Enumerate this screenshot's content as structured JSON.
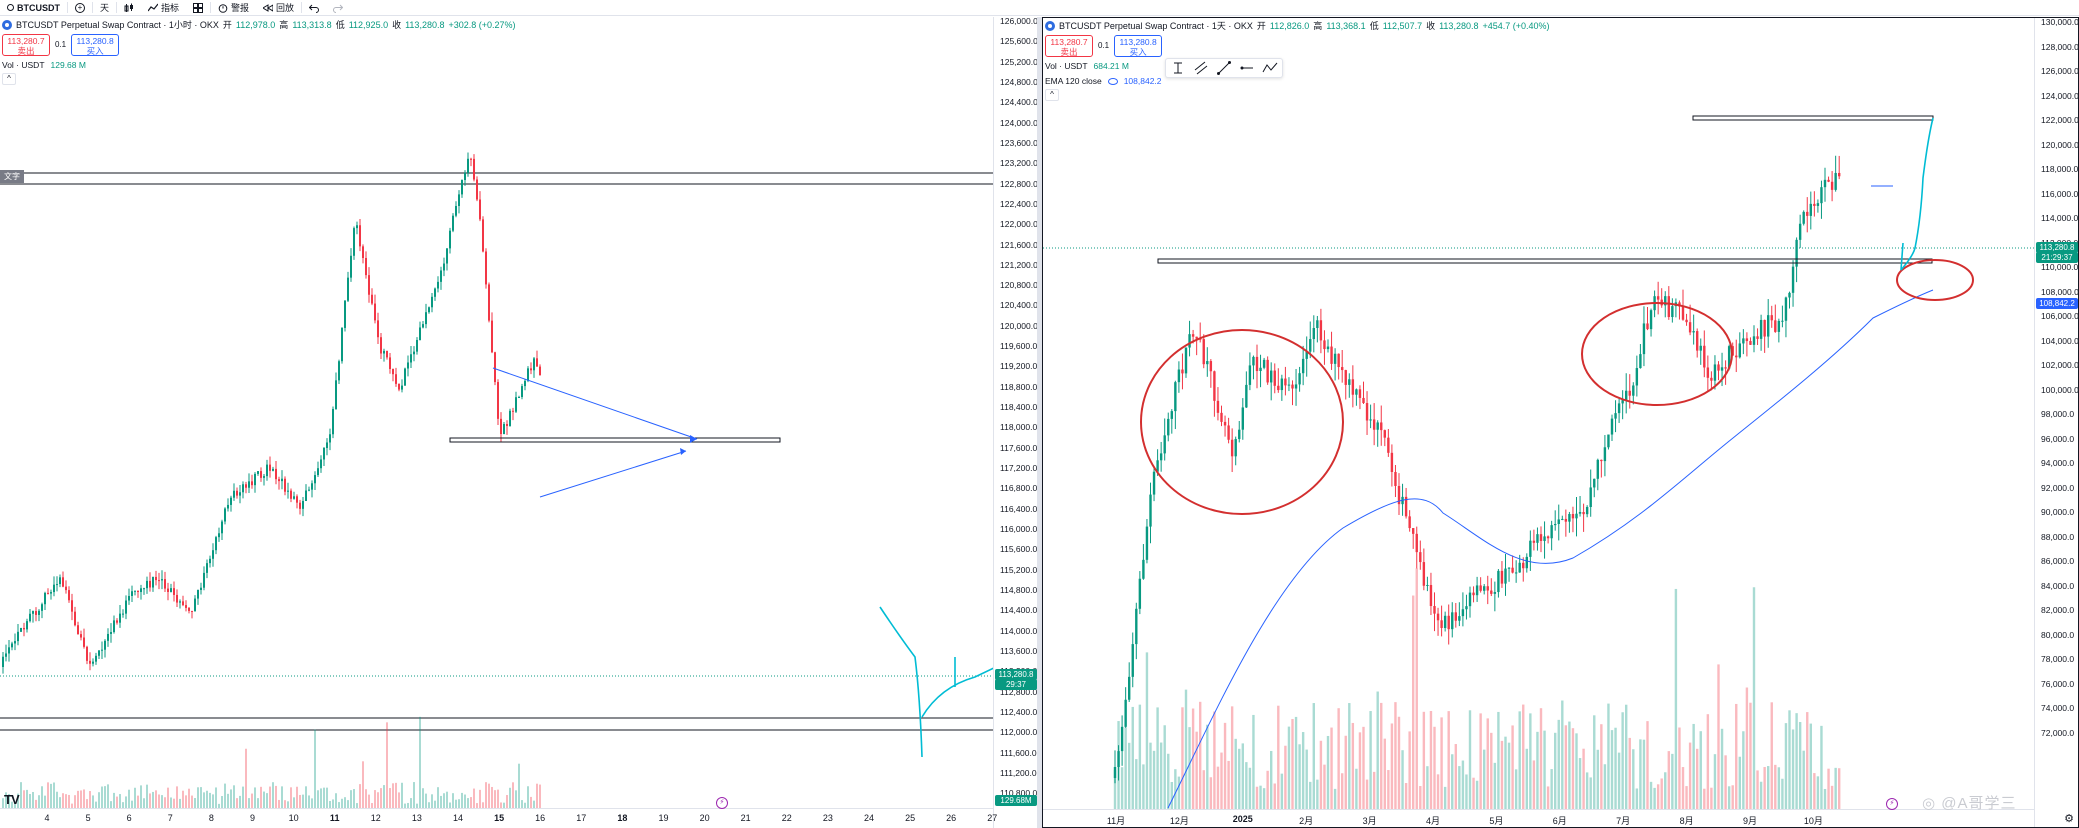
{
  "toolbar": {
    "symbol": "BTCUSDT",
    "interval": "天",
    "indicators": "指标",
    "alerts": "警报",
    "replay": "回放"
  },
  "left": {
    "title": "BTCUSDT Perpetual Swap Contract · 1小时 · OKX",
    "ohlc": [
      {
        "label": "开",
        "value": "112,978.0"
      },
      {
        "label": "高",
        "value": "113,313.8"
      },
      {
        "label": "低",
        "value": "112,925.0"
      },
      {
        "label": "收",
        "value": "113,280.8"
      }
    ],
    "change": "+302.8 (+0.27%)",
    "sell_price": "113,280.7",
    "sell_label": "卖出",
    "spread": "0.1",
    "buy_price": "113,280.8",
    "buy_label": "买入",
    "vol_label": "Vol · USDT",
    "vol_value": "129.68 M",
    "collapse": "^",
    "text_note": "文字",
    "price_ticks": [
      "126,000.0",
      "125,600.0",
      "125,200.0",
      "124,800.0",
      "124,400.0",
      "124,000.0",
      "123,600.0",
      "123,200.0",
      "122,800.0",
      "122,400.0",
      "122,000.0",
      "121,600.0",
      "121,200.0",
      "120,800.0",
      "120,400.0",
      "120,000.0",
      "119,600.0",
      "119,200.0",
      "118,800.0",
      "118,400.0",
      "118,000.0",
      "117,600.0",
      "117,200.0",
      "116,800.0",
      "116,400.0",
      "116,000.0",
      "115,600.0",
      "115,200.0",
      "114,800.0",
      "114,400.0",
      "114,000.0",
      "113,600.0",
      "113,200.0",
      "112,800.0",
      "112,400.0",
      "112,000.0",
      "111,600.0",
      "111,200.0",
      "110,800.0"
    ],
    "price_tag": "113,280.8",
    "price_tag_time": "29:37",
    "vol_tag": "129.68M",
    "time_ticks": [
      "4",
      "5",
      "6",
      "7",
      "8",
      "9",
      "10",
      "11",
      "12",
      "13",
      "14",
      "15",
      "16",
      "17",
      "18",
      "19",
      "20",
      "21",
      "22",
      "23",
      "24",
      "25",
      "26",
      "27"
    ],
    "time_bold": [
      "11",
      "15",
      "18"
    ],
    "logo": "TV",
    "jump_icon": "⚡"
  },
  "right": {
    "title": "BTCUSDT Perpetual Swap Contract · 1天 · OKX",
    "ohlc": [
      {
        "label": "开",
        "value": "112,826.0"
      },
      {
        "label": "高",
        "value": "113,368.1"
      },
      {
        "label": "低",
        "value": "112,507.7"
      },
      {
        "label": "收",
        "value": "113,280.8"
      }
    ],
    "change": "+454.7 (+0.40%)",
    "sell_price": "113,280.7",
    "sell_label": "卖出",
    "spread": "0.1",
    "buy_price": "113,280.8",
    "buy_label": "买入",
    "vol_label": "Vol · USDT",
    "vol_value": "684.21 M",
    "ema_label": "EMA 120 close",
    "ema_value": "108,842.2",
    "collapse": "^",
    "price_ticks": [
      "130,000.0",
      "128,000.0",
      "126,000.0",
      "124,000.0",
      "122,000.0",
      "120,000.0",
      "118,000.0",
      "116,000.0",
      "114,000.0",
      "112,000.0",
      "110,000.0",
      "108,000.0",
      "106,000.0",
      "104,000.0",
      "102,000.0",
      "100,000.0",
      "98,000.0",
      "96,000.0",
      "94,000.0",
      "92,000.0",
      "90,000.0",
      "88,000.0",
      "86,000.0",
      "84,000.0",
      "82,000.0",
      "80,000.0",
      "78,000.0",
      "76,000.0",
      "74,000.0",
      "72,000.0"
    ],
    "price_tag": "113,280.8",
    "price_tag_time": "21:29:37",
    "ema_tag": "108,842.2",
    "time_ticks": [
      "11月",
      "12月",
      "2025",
      "2月",
      "3月",
      "4月",
      "5月",
      "6月",
      "7月",
      "8月",
      "9月",
      "10月"
    ],
    "time_bold": [
      "2025"
    ],
    "jump_icon": "⚡",
    "watermark": "◎ @A哥学三",
    "settings": "⚙"
  },
  "colors": {
    "up": "#089981",
    "down": "#f23645",
    "accent": "#2962ff",
    "annotation": "#d32f2f"
  }
}
